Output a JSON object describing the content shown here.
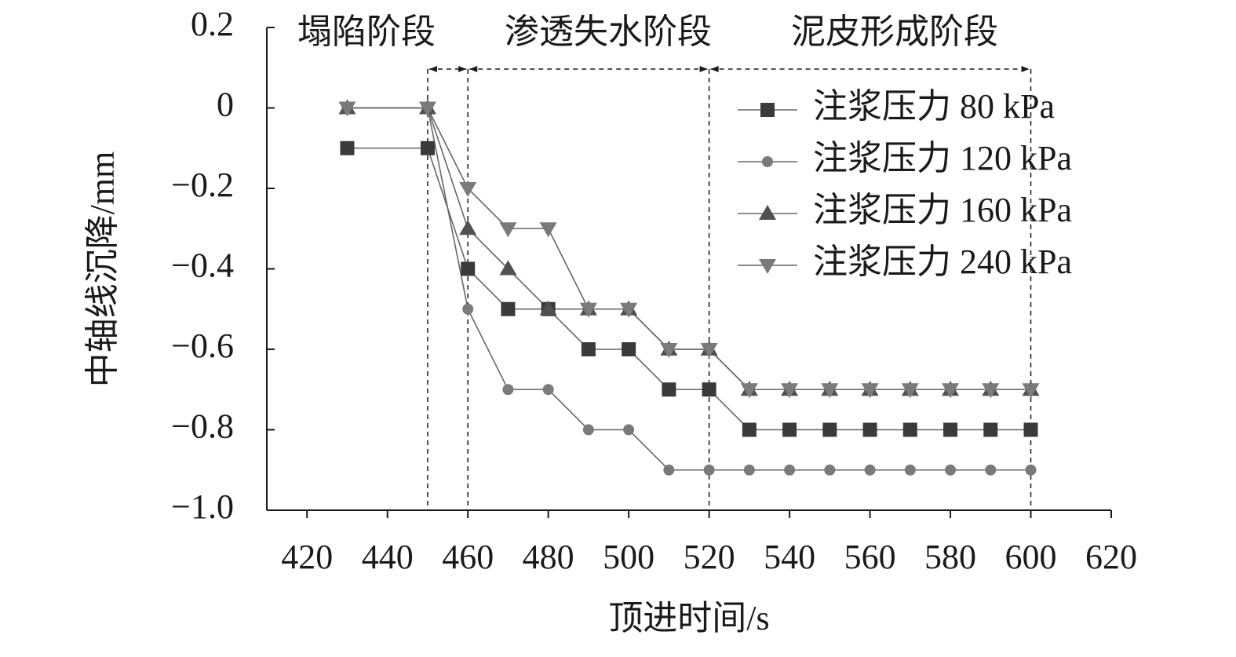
{
  "chart_data": {
    "type": "line",
    "x_label": "顶进时间/s",
    "y_label": "中轴线沉降/mm",
    "x": [
      430,
      450,
      460,
      470,
      480,
      490,
      500,
      510,
      520,
      530,
      540,
      550,
      560,
      570,
      580,
      590,
      600
    ],
    "series": [
      {
        "name": "注浆压力 80 kPa",
        "color": "#3a3a3a",
        "marker": "square",
        "values": [
          -0.1,
          -0.1,
          -0.4,
          -0.5,
          -0.5,
          -0.6,
          -0.6,
          -0.7,
          -0.7,
          -0.8,
          -0.8,
          -0.8,
          -0.8,
          -0.8,
          -0.8,
          -0.8,
          -0.8
        ]
      },
      {
        "name": "注浆压力 120 kPa",
        "color": "#7a7a7a",
        "marker": "circle",
        "values": [
          0,
          0,
          -0.5,
          -0.7,
          -0.7,
          -0.8,
          -0.8,
          -0.9,
          -0.9,
          -0.9,
          -0.9,
          -0.9,
          -0.9,
          -0.9,
          -0.9,
          -0.9,
          -0.9
        ]
      },
      {
        "name": "注浆压力 160 kPa",
        "color": "#505050",
        "marker": "triangle-up",
        "values": [
          0,
          0,
          -0.3,
          -0.4,
          -0.5,
          -0.5,
          -0.5,
          -0.6,
          -0.6,
          -0.7,
          -0.7,
          -0.7,
          -0.7,
          -0.7,
          -0.7,
          -0.7,
          -0.7
        ]
      },
      {
        "name": "注浆压力 240 kPa",
        "color": "#7a7a7a",
        "marker": "triangle-down",
        "values": [
          0,
          0,
          -0.2,
          -0.3,
          -0.3,
          -0.5,
          -0.5,
          -0.6,
          -0.6,
          -0.7,
          -0.7,
          -0.7,
          -0.7,
          -0.7,
          -0.7,
          -0.7,
          -0.7
        ]
      }
    ],
    "phases": [
      {
        "label": "塌陷阶段",
        "start": 450,
        "end": 460
      },
      {
        "label": "渗透失水阶段",
        "start": 460,
        "end": 520
      },
      {
        "label": "泥皮形成阶段",
        "start": 520,
        "end": 600
      }
    ],
    "xlim": [
      410,
      620
    ],
    "xticks": [
      420,
      440,
      460,
      480,
      500,
      520,
      540,
      560,
      580,
      600,
      620
    ],
    "ylim": [
      -1.0,
      0.2
    ],
    "yticks": [
      0.2,
      0,
      {
        "value": -0.2,
        "label": "−0.2"
      },
      {
        "value": -0.4,
        "label": "−0.4"
      },
      {
        "value": -0.6,
        "label": "−0.6"
      },
      {
        "value": -0.8,
        "label": "−0.8"
      },
      {
        "value": -1.0,
        "label": "−1.0"
      }
    ],
    "legend": "upper right",
    "grid": false
  }
}
